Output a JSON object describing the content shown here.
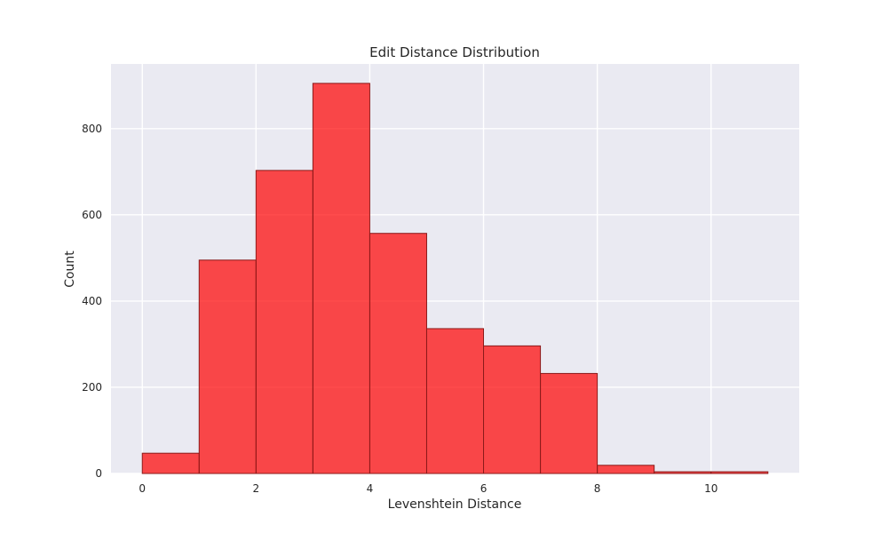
{
  "chart_data": {
    "type": "bar",
    "title": "Edit Distance Distribution",
    "xlabel": "Levenshtein Distance",
    "ylabel": "Count",
    "bins": [
      {
        "x0": 0,
        "x1": 1,
        "count": 47
      },
      {
        "x0": 1,
        "x1": 2,
        "count": 495
      },
      {
        "x0": 2,
        "x1": 3,
        "count": 703
      },
      {
        "x0": 3,
        "x1": 4,
        "count": 905
      },
      {
        "x0": 4,
        "x1": 5,
        "count": 557
      },
      {
        "x0": 5,
        "x1": 6,
        "count": 336
      },
      {
        "x0": 6,
        "x1": 7,
        "count": 296
      },
      {
        "x0": 7,
        "x1": 8,
        "count": 232
      },
      {
        "x0": 8,
        "x1": 9,
        "count": 19
      },
      {
        "x0": 9,
        "x1": 10,
        "count": 4
      },
      {
        "x0": 10,
        "x1": 11,
        "count": 4
      }
    ],
    "xlim": [
      -0.55,
      11.55
    ],
    "ylim": [
      0,
      950
    ],
    "xticks": [
      0,
      2,
      4,
      6,
      8,
      10
    ],
    "yticks": [
      0,
      200,
      400,
      600,
      800
    ],
    "grid": true,
    "colors": {
      "bar_fill": "#ff0000",
      "bar_edge": "#8b1a1a",
      "plot_background": "#eaeaf2",
      "grid": "#ffffff"
    }
  }
}
